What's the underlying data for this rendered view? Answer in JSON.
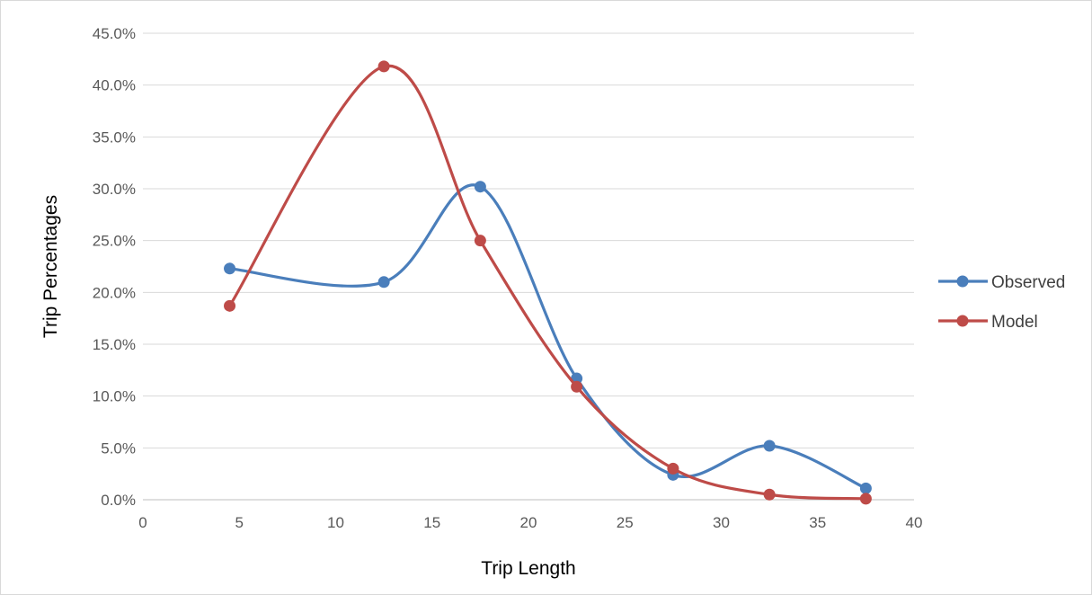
{
  "chart_data": {
    "type": "line",
    "title": "",
    "xlabel": "Trip Length",
    "ylabel": "Trip Percentages",
    "xlim": [
      0,
      40
    ],
    "ylim": [
      0,
      45
    ],
    "x_ticks": [
      0,
      5,
      10,
      15,
      20,
      25,
      30,
      35,
      40
    ],
    "x_tick_labels": [
      "0",
      "5",
      "10",
      "15",
      "20",
      "25",
      "30",
      "35",
      "40"
    ],
    "y_ticks": [
      0,
      5,
      10,
      15,
      20,
      25,
      30,
      35,
      40,
      45
    ],
    "y_tick_labels": [
      "0.0%",
      "5.0%",
      "10.0%",
      "15.0%",
      "20.0%",
      "25.0%",
      "30.0%",
      "35.0%",
      "40.0%",
      "45.0%"
    ],
    "grid": "horizontal",
    "smooth": true,
    "legend_position": "right",
    "x": [
      4.5,
      12.5,
      17.5,
      22.5,
      27.5,
      32.5,
      37.5
    ],
    "series": [
      {
        "name": "Observed",
        "color": "#4a7ebb",
        "values": [
          22.3,
          21.0,
          30.2,
          11.7,
          2.4,
          5.2,
          1.1
        ]
      },
      {
        "name": "Model",
        "color": "#be4b48",
        "values": [
          18.7,
          41.8,
          25.0,
          10.9,
          3.0,
          0.5,
          0.1
        ]
      }
    ]
  }
}
